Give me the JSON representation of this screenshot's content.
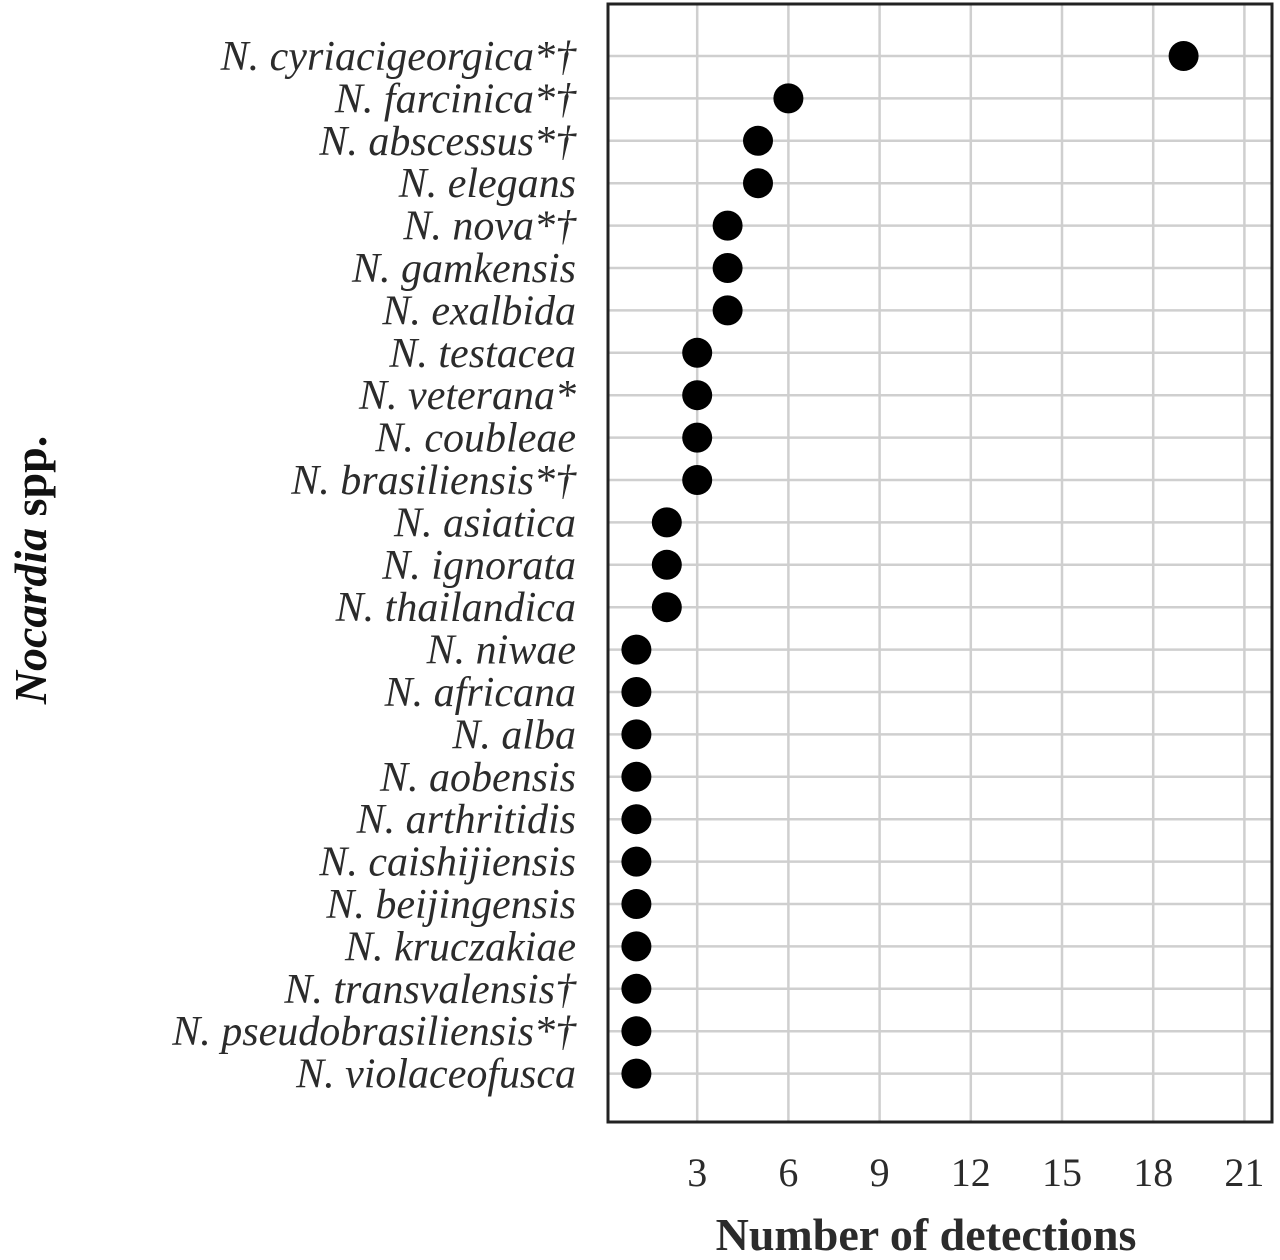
{
  "chart_data": {
    "type": "scatter",
    "orientation": "horizontal-dot",
    "categories": [
      "N. cyriacigeorgica*†",
      "N. farcinica*†",
      "N. abscessus*†",
      "N. elegans",
      "N. nova*†",
      "N. gamkensis",
      "N. exalbida",
      "N. testacea",
      "N. veterana*",
      "N. coubleae",
      "N. brasiliensis*†",
      "N. asiatica",
      "N. ignorata",
      "N. thailandica",
      "N. niwae",
      "N. africana",
      "N. alba",
      "N. aobensis",
      "N. arthritidis",
      "N. caishijiensis",
      "N. beijingensis",
      "N. kruczakiae",
      "N. transvalensis†",
      "N. pseudobrasiliensis*†",
      "N. violaceofusca"
    ],
    "values": [
      19,
      6,
      5,
      5,
      4,
      4,
      4,
      3,
      3,
      3,
      3,
      2,
      2,
      2,
      1,
      1,
      1,
      1,
      1,
      1,
      1,
      1,
      1,
      1,
      1
    ],
    "xlabel": "Number of detections",
    "ylabel_italic": "Nocardia",
    "ylabel_rest": " spp.",
    "xticks": [
      3,
      6,
      9,
      12,
      15,
      18,
      21
    ],
    "xlim": [
      0,
      21.8
    ],
    "grid": true,
    "point_color": "#000000"
  }
}
